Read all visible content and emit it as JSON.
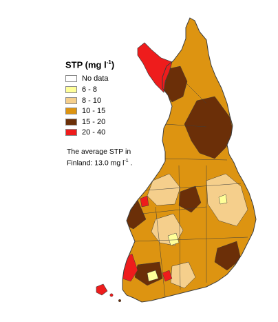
{
  "legend": {
    "title_main": "STP (mg l",
    "title_sup": "-1",
    "title_end": ")",
    "items": [
      {
        "label": "No data",
        "color": "#ffffff"
      },
      {
        "label": "6 - 8",
        "color": "#ffff99"
      },
      {
        "label": "8 - 10",
        "color": "#f5cf8c"
      },
      {
        "label": "10 - 15",
        "color": "#dd9411"
      },
      {
        "label": "15 - 20",
        "color": "#6b2f08"
      },
      {
        "label": "20 - 40",
        "color": "#ee1c1c"
      }
    ]
  },
  "note": {
    "line1": "The average STP in",
    "line2_main": "Finland: 13.0 mg l",
    "line2_sup": "-1",
    "line2_end": " ."
  },
  "border_color": "#3d3d3d"
}
